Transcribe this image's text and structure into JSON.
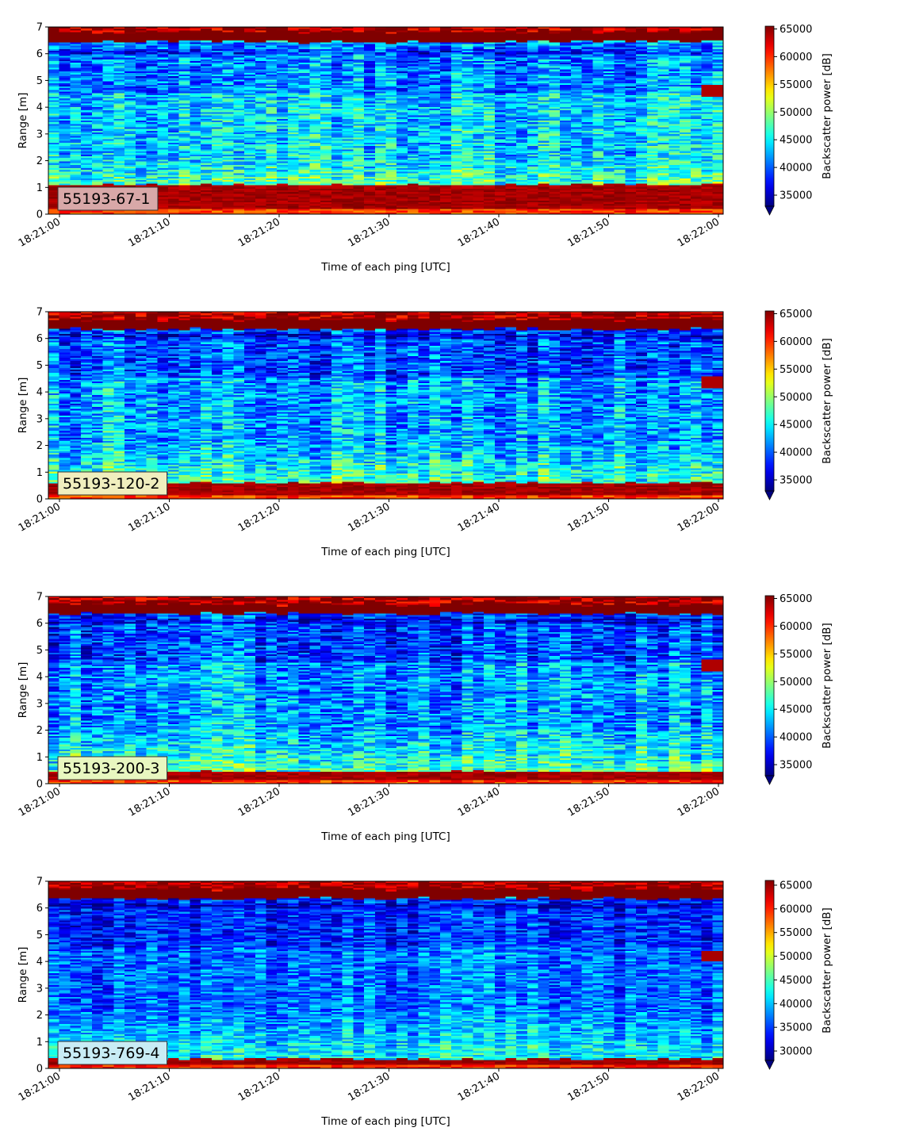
{
  "chart_data": [
    {
      "type": "heatmap",
      "annotation": "55193-67-1",
      "xlabel": "Time of each ping [UTC]",
      "ylabel": "Range [m]",
      "colorbar_label": "Backscatter power [dB]",
      "x_ticks": [
        "18:21:00",
        "18:21:10",
        "18:21:20",
        "18:21:30",
        "18:21:40",
        "18:21:50",
        "18:22:00"
      ],
      "y_ticks": [
        0,
        1,
        2,
        3,
        4,
        5,
        6,
        7
      ],
      "ylim": [
        0,
        7
      ],
      "colorbar_ticks": [
        35000,
        40000,
        45000,
        50000,
        55000,
        60000,
        65000
      ],
      "clim": [
        33000,
        65500
      ],
      "colormap": "jet",
      "features": {
        "surface_band_m": [
          6.45,
          7.0
        ],
        "bottom_band_m": [
          0.2,
          1.1
        ],
        "water_column_mean": 44000,
        "bright_spot": {
          "time_s": 60,
          "range_m": 4.6
        }
      }
    },
    {
      "type": "heatmap",
      "annotation": "55193-120-2",
      "xlabel": "Time of each ping [UTC]",
      "ylabel": "Range [m]",
      "colorbar_label": "Backscatter power [dB]",
      "x_ticks": [
        "18:21:00",
        "18:21:10",
        "18:21:20",
        "18:21:30",
        "18:21:40",
        "18:21:50",
        "18:22:00"
      ],
      "y_ticks": [
        0,
        1,
        2,
        3,
        4,
        5,
        6,
        7
      ],
      "ylim": [
        0,
        7
      ],
      "colorbar_ticks": [
        35000,
        40000,
        45000,
        50000,
        55000,
        60000,
        65000
      ],
      "clim": [
        33000,
        65500
      ],
      "colormap": "jet",
      "features": {
        "surface_band_m": [
          6.35,
          7.0
        ],
        "bottom_band_m": [
          0.1,
          0.6
        ],
        "water_column_mean": 42500,
        "bright_spot": {
          "time_s": 60,
          "range_m": 4.35
        }
      }
    },
    {
      "type": "heatmap",
      "annotation": "55193-200-3",
      "xlabel": "Time of each ping [UTC]",
      "ylabel": "Range [m]",
      "colorbar_label": "Backscatter power [dB]",
      "x_ticks": [
        "18:21:00",
        "18:21:10",
        "18:21:20",
        "18:21:30",
        "18:21:40",
        "18:21:50",
        "18:22:00"
      ],
      "y_ticks": [
        0,
        1,
        2,
        3,
        4,
        5,
        6,
        7
      ],
      "ylim": [
        0,
        7
      ],
      "colorbar_ticks": [
        35000,
        40000,
        45000,
        50000,
        55000,
        60000,
        65000
      ],
      "clim": [
        33000,
        65500
      ],
      "colormap": "jet",
      "features": {
        "surface_band_m": [
          6.35,
          7.0
        ],
        "bottom_band_m": [
          0.15,
          0.45
        ],
        "water_column_mean": 42000,
        "bright_spot": {
          "time_s": 60,
          "range_m": 4.4
        }
      }
    },
    {
      "type": "heatmap",
      "annotation": "55193-769-4",
      "xlabel": "Time of each ping [UTC]",
      "ylabel": "Range [m]",
      "colorbar_label": "Backscatter power [dB]",
      "x_ticks": [
        "18:21:00",
        "18:21:10",
        "18:21:20",
        "18:21:30",
        "18:21:40",
        "18:21:50",
        "18:22:00"
      ],
      "y_ticks": [
        0,
        1,
        2,
        3,
        4,
        5,
        6,
        7
      ],
      "ylim": [
        0,
        7
      ],
      "colorbar_ticks": [
        30000,
        35000,
        40000,
        45000,
        50000,
        55000,
        60000,
        65000
      ],
      "clim": [
        28000,
        66000
      ],
      "colormap": "jet",
      "features": {
        "surface_band_m": [
          6.35,
          7.0
        ],
        "bottom_band_m": [
          0.15,
          0.35
        ],
        "water_column_mean": 37000,
        "bright_spot": {
          "time_s": 60,
          "range_m": 4.2
        }
      }
    }
  ]
}
